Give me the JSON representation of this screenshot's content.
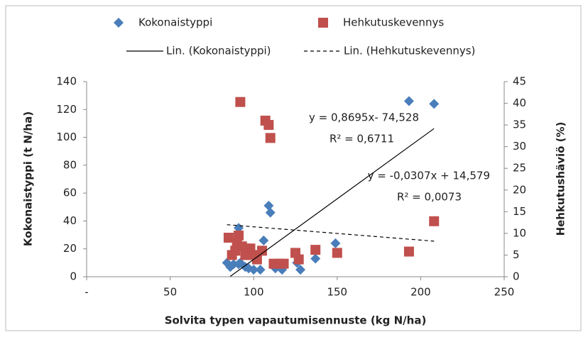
{
  "chart_data": {
    "type": "scatter",
    "x_label": "Solvita typen vapautumisennuste (kg N/ha)",
    "y_label": "Kokonaistyppi (t N/ha)",
    "y2_label": "Hehkutushäviö  (%)",
    "xlim": [
      0,
      250
    ],
    "xticks": [
      {
        "value": 0,
        "label": "-"
      },
      50,
      100,
      150,
      200,
      250
    ],
    "ylim": [
      0,
      140
    ],
    "yticks": [
      0,
      20,
      40,
      60,
      80,
      100,
      120,
      140
    ],
    "y2lim": [
      0,
      45
    ],
    "y2ticks": [
      0,
      5,
      10,
      15,
      20,
      25,
      30,
      35,
      40,
      45
    ],
    "grid": false,
    "series": [
      {
        "name": "Kokonaistyppi",
        "color": "#4a7ebb",
        "marker": "diamond",
        "x": [
          193,
          208,
          109,
          110,
          91,
          106,
          149,
          84,
          86,
          88,
          91,
          95,
          97,
          100,
          104,
          113,
          117,
          126,
          128,
          137,
          92
        ],
        "values": [
          126,
          124,
          51,
          46,
          35,
          26,
          24,
          10,
          7,
          9,
          9,
          7,
          6,
          5,
          5,
          6,
          5,
          10,
          5,
          13,
          10
        ]
      },
      {
        "name": "Hehkutuskevennys",
        "color": "#c0504d",
        "marker": "square",
        "axis": "y2",
        "x": [
          92,
          107,
          109,
          110,
          85,
          87,
          89,
          90,
          91,
          93,
          95,
          96,
          98,
          100,
          102,
          105,
          112,
          115,
          118,
          125,
          127,
          137,
          150,
          193,
          208
        ],
        "values": [
          40.3,
          36,
          35,
          32,
          9,
          5,
          6,
          8,
          9.5,
          7,
          5,
          6.5,
          6.5,
          5,
          4,
          6,
          3,
          3,
          3,
          5.5,
          4,
          6.2,
          5.5,
          5.8,
          12.8
        ]
      }
    ],
    "trendlines": [
      {
        "name": "Lin. (Kokonaistyppi)",
        "color": "#000000",
        "dash": false,
        "x": [
          86,
          208
        ],
        "values": [
          0.25,
          106.3
        ],
        "equation": "y = 0,8695x- 74,528",
        "r2": "R² = 0,6711"
      },
      {
        "name": "Lin. (Hehkutuskevennys)",
        "color": "#000000",
        "dash": true,
        "axis": "y2",
        "x": [
          84,
          208
        ],
        "values": [
          12.0,
          8.2
        ],
        "equation": "y = -0,0307x + 14,579",
        "r2": "R² = 0,0073"
      }
    ]
  }
}
